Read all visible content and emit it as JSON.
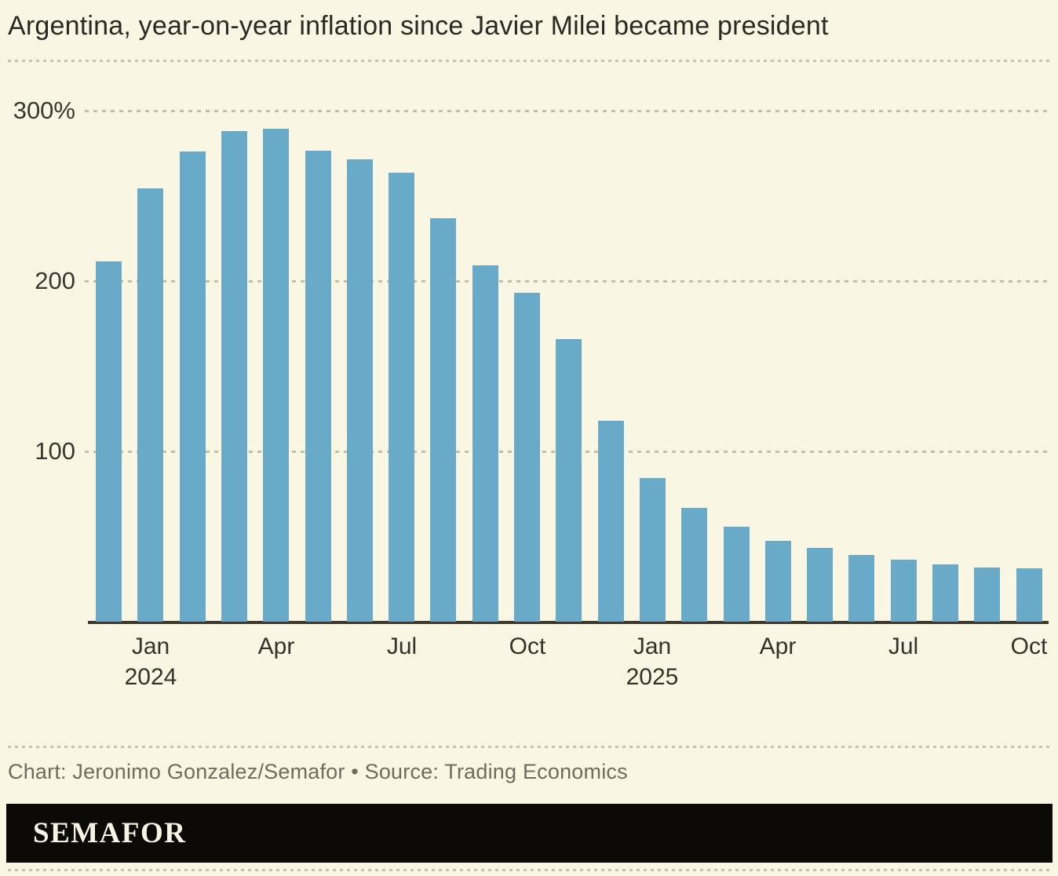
{
  "title": "Argentina, year-on-year inflation since Javier Milei became president",
  "credit": "Chart: Jeronimo Gonzalez/Semafor • Source: Trading Economics",
  "logo": "SEMAFOR",
  "colors": {
    "background": "#f9f7e3",
    "bar": "#69aac9",
    "axis_line": "#3c3a2e",
    "grid_dots": "#c5bfa9",
    "title_text": "#2a2a25",
    "tick_text": "#33322b",
    "credit_text": "#6e6c5e",
    "logo_background": "#0b0a07",
    "logo_text": "#f7f3e4"
  },
  "chart_data": {
    "type": "bar",
    "title": "Argentina, year-on-year inflation since Javier Milei became president",
    "unit": "%",
    "categories": [
      "Dec 2023",
      "Jan 2024",
      "Feb 2024",
      "Mar 2024",
      "Apr 2024",
      "May 2024",
      "Jun 2024",
      "Jul 2024",
      "Aug 2024",
      "Sep 2024",
      "Oct 2024",
      "Nov 2024",
      "Dec 2024",
      "Jan 2025",
      "Feb 2025",
      "Mar 2025",
      "Apr 2025",
      "May 2025",
      "Jun 2025",
      "Jul 2025",
      "Aug 2025",
      "Sep 2025",
      "Oct 2025"
    ],
    "values": [
      211.4,
      254.2,
      276.2,
      287.9,
      289.4,
      276.4,
      271.5,
      263.4,
      236.7,
      209.0,
      193.0,
      166.0,
      117.8,
      84.5,
      66.9,
      55.9,
      47.3,
      43.5,
      39.4,
      36.6,
      33.6,
      31.8,
      31.3
    ],
    "ylim": [
      0,
      300
    ],
    "y_ticks": [
      {
        "label": "300%",
        "value": 300
      },
      {
        "label": "200",
        "value": 200
      },
      {
        "label": "100",
        "value": 100
      }
    ],
    "x_ticks": [
      {
        "index": 1,
        "label": "Jan",
        "year": "2024"
      },
      {
        "index": 4,
        "label": "Apr"
      },
      {
        "index": 7,
        "label": "Jul"
      },
      {
        "index": 10,
        "label": "Oct"
      },
      {
        "index": 13,
        "label": "Jan",
        "year": "2025"
      },
      {
        "index": 16,
        "label": "Apr"
      },
      {
        "index": 19,
        "label": "Jul"
      },
      {
        "index": 22,
        "label": "Oct"
      }
    ],
    "grid": "horizontal dotted",
    "legend": "none",
    "source": "Trading Economics"
  }
}
